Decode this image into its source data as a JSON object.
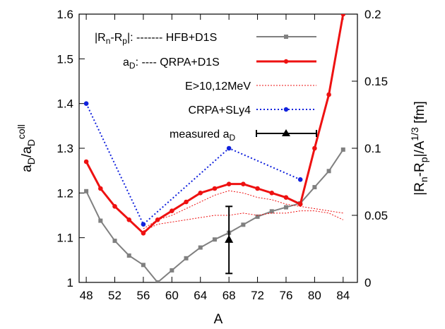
{
  "chart_data": {
    "type": "line",
    "xlabel": "A",
    "ylabel": "a_D/a_D^coll",
    "y2label": "|R_n-R_p|/A^1/3 [fm]",
    "xlim": [
      47,
      86
    ],
    "ylim": [
      1.0,
      1.6
    ],
    "y2lim": [
      0,
      0.2
    ],
    "x_ticks": [
      "48",
      "52",
      "56",
      "60",
      "64",
      "68",
      "72",
      "76",
      "80",
      "84"
    ],
    "y_ticks": [
      "1",
      "1.1",
      "1.2",
      "1.3",
      "1.4",
      "1.5",
      "1.6"
    ],
    "y2_ticks": [
      "0",
      "0.05",
      "0.1",
      "0.15",
      "0.2"
    ],
    "grid": false,
    "legend_placement": "top-right",
    "legend": {
      "hfb": "|R_n-R_p|: ------- HFB+D1S",
      "qrpa": "a_D: ---- QRPA+D1S",
      "e10": "E>10,12MeV",
      "crpa": "CRPA+SLy4",
      "measured": "measured a_D"
    },
    "series": [
      {
        "key": "hfb",
        "axis": "right",
        "color": "#808080",
        "marker": "square",
        "x": [
          48,
          50,
          52,
          54,
          56,
          58,
          60,
          62,
          64,
          66,
          68,
          70,
          72,
          74,
          76,
          78,
          80,
          82,
          84
        ],
        "values": [
          0.068,
          0.046,
          0.031,
          0.02,
          0.013,
          0.0,
          0.009,
          0.018,
          0.026,
          0.032,
          0.037,
          0.043,
          0.049,
          0.053,
          0.056,
          0.059,
          0.071,
          0.083,
          0.099
        ]
      },
      {
        "key": "qrpa",
        "axis": "left",
        "color": "#ee1111",
        "marker": "circle",
        "x": [
          48,
          50,
          52,
          54,
          56,
          58,
          60,
          62,
          64,
          66,
          68,
          70,
          72,
          74,
          76,
          78,
          80,
          82,
          84
        ],
        "values": [
          1.27,
          1.21,
          1.17,
          1.14,
          1.11,
          1.14,
          1.16,
          1.18,
          1.2,
          1.21,
          1.22,
          1.22,
          1.21,
          1.2,
          1.19,
          1.175,
          1.3,
          1.42,
          1.6
        ]
      },
      {
        "key": "e10a",
        "axis": "left",
        "color": "#ee1111",
        "marker": "none",
        "x": [
          56,
          58,
          60,
          62,
          64,
          66,
          68,
          70,
          72,
          74,
          76,
          78,
          80,
          82,
          84
        ],
        "values": [
          1.12,
          1.14,
          1.15,
          1.165,
          1.18,
          1.195,
          1.205,
          1.2,
          1.19,
          1.185,
          1.175,
          1.17,
          1.165,
          1.16,
          1.155
        ]
      },
      {
        "key": "e10b",
        "axis": "left",
        "color": "#ee1111",
        "marker": "none",
        "x": [
          56,
          58,
          60,
          62,
          64,
          66,
          68,
          70,
          72,
          74,
          76,
          78,
          80,
          82,
          84
        ],
        "values": [
          1.115,
          1.13,
          1.135,
          1.14,
          1.145,
          1.15,
          1.15,
          1.155,
          1.15,
          1.155,
          1.155,
          1.16,
          1.16,
          1.155,
          1.14
        ]
      },
      {
        "key": "crpa",
        "axis": "left",
        "color": "#1122dd",
        "marker": "circle",
        "x": [
          48,
          56,
          68,
          78
        ],
        "values": [
          1.4,
          1.13,
          1.3,
          1.23
        ]
      }
    ],
    "measured": {
      "x": 68,
      "y": 1.095,
      "yerr": [
        1.02,
        1.17
      ]
    }
  }
}
